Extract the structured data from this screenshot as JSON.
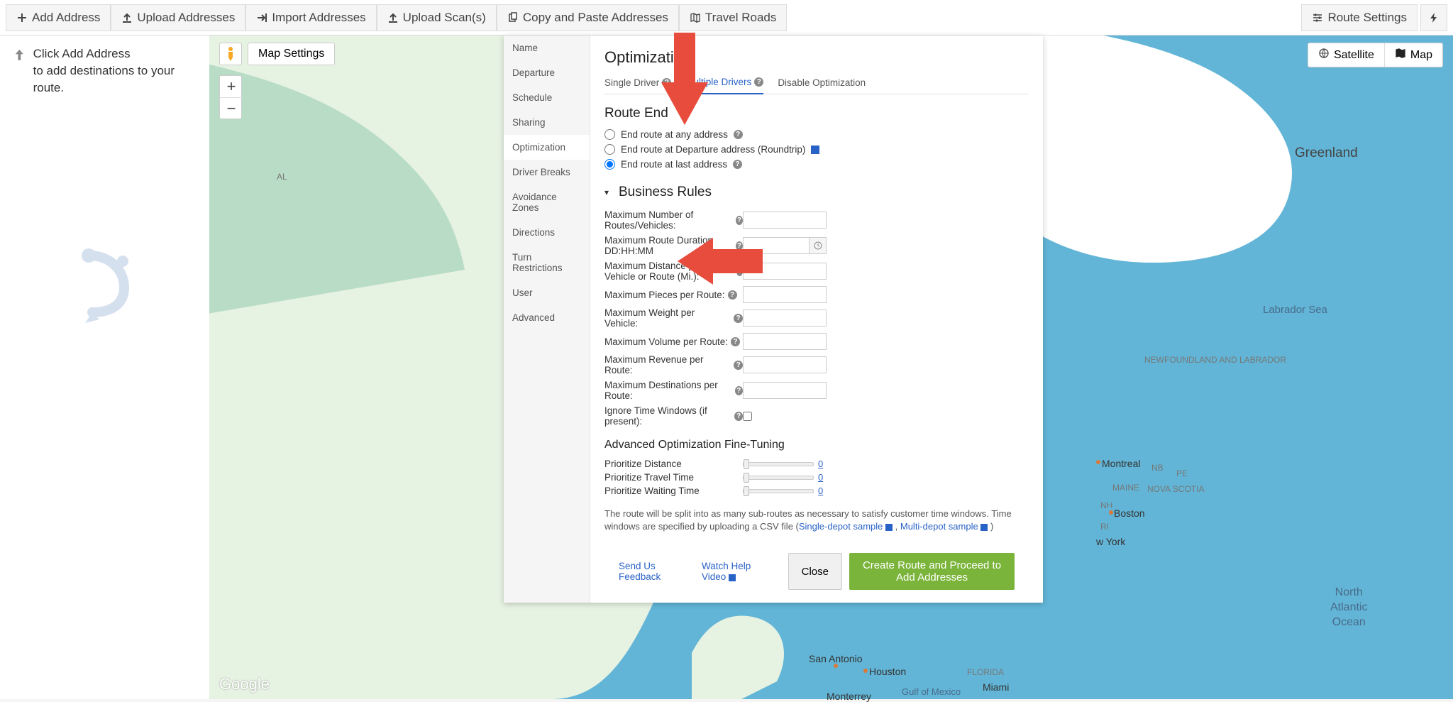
{
  "toolbar": {
    "addAddress": "Add Address",
    "uploadAddresses": "Upload Addresses",
    "importAddresses": "Import Addresses",
    "uploadScans": "Upload Scan(s)",
    "copyPaste": "Copy and Paste Addresses",
    "travelRoads": "Travel Roads",
    "routeSettings": "Route Settings"
  },
  "sideHint": {
    "line1": "Click Add Address",
    "line2": "to add destinations to your route."
  },
  "mapControls": {
    "mapSettings": "Map Settings",
    "satellite": "Satellite",
    "map": "Map",
    "googleLogo": "Google"
  },
  "dialog": {
    "sidebar": [
      "Name",
      "Departure",
      "Schedule",
      "Sharing",
      "Optimization",
      "Driver Breaks",
      "Avoidance Zones",
      "Directions",
      "Turn Restrictions",
      "User",
      "Advanced"
    ],
    "activeSidebar": 4,
    "title": "Optimization",
    "tabs": [
      "Single Driver",
      "Multiple Drivers",
      "Disable Optimization"
    ],
    "activeTab": 1,
    "tabsHelpOn": [
      true,
      true,
      false
    ],
    "routeEnd": {
      "title": "Route End",
      "options": [
        {
          "label": "End route at any address",
          "help": true
        },
        {
          "label": "End route at Departure address (Roundtrip)",
          "video": true
        },
        {
          "label": "End route at last address",
          "help": true
        }
      ],
      "selected": 2
    },
    "businessRules": {
      "title": "Business Rules",
      "rows": [
        {
          "label": "Maximum Number of Routes/Vehicles:",
          "help": true,
          "input": "text"
        },
        {
          "label": "Maximum Route Duration DD:HH:MM",
          "help": true,
          "input": "text",
          "addon": "clock"
        },
        {
          "label": "Maximum Distance per Vehicle or Route (Mi.):",
          "help": true,
          "input": "text"
        },
        {
          "label": "Maximum Pieces per Route:",
          "help": true,
          "input": "text"
        },
        {
          "label": "Maximum Weight per Vehicle:",
          "help": true,
          "input": "text"
        },
        {
          "label": "Maximum Volume per Route:",
          "help": true,
          "input": "text"
        },
        {
          "label": "Maximum Revenue per Route:",
          "help": true,
          "input": "text"
        },
        {
          "label": "Maximum Destinations per Route:",
          "help": true,
          "input": "text"
        },
        {
          "label": "Ignore Time Windows (if present):",
          "help": true,
          "input": "checkbox"
        }
      ]
    },
    "fineTuning": {
      "title": "Advanced Optimization Fine-Tuning",
      "sliders": [
        {
          "label": "Prioritize Distance",
          "value": 0
        },
        {
          "label": "Prioritize Travel Time",
          "value": 0
        },
        {
          "label": "Prioritize Waiting Time",
          "value": 0
        }
      ]
    },
    "note": {
      "text": "The route will be split into as many sub-routes as necessary to satisfy customer time windows. Time windows are specified by uploading a CSV file (",
      "link1": "Single-depot sample",
      "sep": " , ",
      "link2": "Multi-depot sample",
      "close": " )"
    },
    "footer": {
      "feedback": "Send Us Feedback",
      "watchVideo": "Watch Help Video",
      "close": "Close",
      "primary": "Create Route and Proceed to Add Addresses"
    }
  },
  "mapLabels": {
    "greenland": "Greenland",
    "labrador": "Labrador Sea",
    "newfoundland": "NEWFOUNDLAND AND LABRADOR",
    "novaScotia": "NOVA SCOTIA",
    "montreal": "Montreal",
    "maine": "MAINE",
    "nb": "NB",
    "nh": "NH",
    "pe": "PE",
    "ri": "RI",
    "boston": "Boston",
    "york": "w York",
    "sanAntonio": "San Antonio",
    "houston": "Houston",
    "monterrey": "Monterrey",
    "florida": "FLORIDA",
    "miami": "Miami",
    "gulfMexico": "Gulf of Mexico",
    "northAtlantic": "North Atlantic Ocean",
    "al": "AL"
  },
  "colors": {
    "primary": "#2962c6",
    "success": "#7bb43a",
    "arrow": "#e74c3c",
    "ocean": "#62b5d6",
    "land": "#d9efd4"
  }
}
